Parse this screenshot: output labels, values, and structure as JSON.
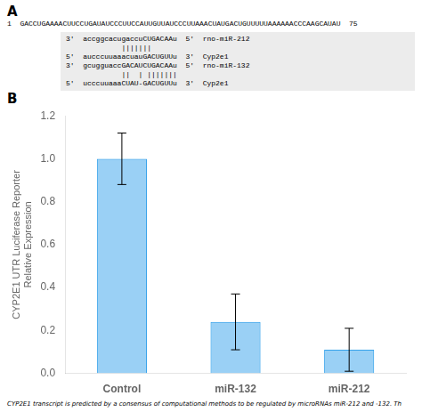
{
  "chart_data": {
    "type": "bar",
    "categories": [
      "Control",
      "miR-132",
      "miR-212"
    ],
    "values": [
      1.0,
      0.24,
      0.11
    ],
    "errors": [
      0.12,
      0.13,
      0.1
    ],
    "ylabel": [
      "CYP2E1 UTR Luciferase Reporter",
      "Relative Expression"
    ],
    "ylim": [
      0,
      1.2
    ],
    "yticks": [
      {
        "value": 0,
        "label": "0.0"
      },
      0.2,
      0.4,
      0.6,
      0.8,
      {
        "value": 1.0,
        "label": "1.0"
      },
      1.2
    ],
    "grid": false,
    "annotations": [
      "A",
      "1  GACCUGAAAACUUCCUGAUAUCCCUUCCAUUGUUAUCCCUUAAACUAUGACUGUUUUUAAAAAACCCAAGCAUAU  75",
      "3'  accggcacugaccuCUGACAAu  5'  rno-miR-212",
      "             |||||||",
      "5'  aucccuuaaacuauGACUGUUu  3'  Cyp2e1",
      "3'  gcugguaccGACAUCUGACAAu  5'  rno-miR-132",
      "             ||  | |||||||",
      "5'  ucccuuaaaCUAU-GACUGUUu  3'  Cyp2e1",
      "B",
      "CYP2E1 transcript is predicted by a consensus of computational methods to be regulated by microRNAs miR-212 and -132. Th"
    ]
  }
}
